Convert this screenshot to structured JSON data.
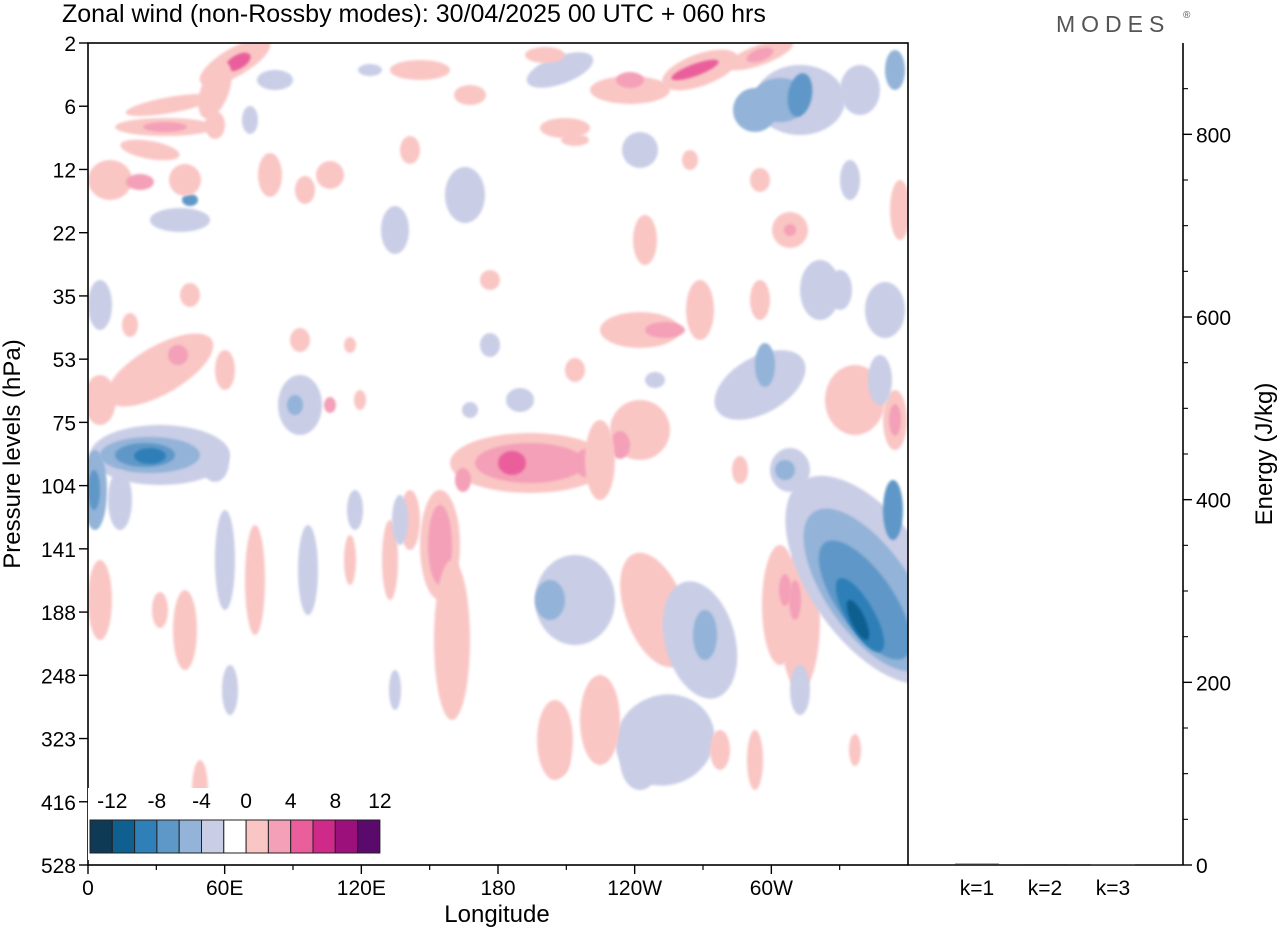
{
  "title": "Zonal wind (non-Rossby modes):  30/04/2025  00 UTC  + 060 hrs",
  "brand": "MODES",
  "brand_mark": "®",
  "chart_data": [
    {
      "type": "heatmap",
      "xlabel": "Longitude",
      "ylabel": "Pressure levels (hPa)",
      "x_ticks": [
        "0",
        "60E",
        "120E",
        "180",
        "120W",
        "60W"
      ],
      "y_ticks": [
        "2",
        "6",
        "12",
        "22",
        "35",
        "53",
        "75",
        "104",
        "141",
        "188",
        "248",
        "323",
        "416",
        "528"
      ],
      "colorbar": {
        "labels": [
          "-12",
          "-8",
          "-4",
          "0",
          "4",
          "8",
          "12"
        ],
        "levels": [
          -14,
          -12,
          -10,
          -8,
          -6,
          -4,
          -2,
          2,
          4,
          6,
          8,
          10,
          12,
          14
        ],
        "colors": [
          "#0e3a55",
          "#0f5f90",
          "#2f7fb8",
          "#5e98c8",
          "#93b3d8",
          "#c9cde6",
          "#ffffff",
          "#f9c6c4",
          "#f4a0b8",
          "#ea5f9b",
          "#cf2a8a",
          "#9b107a",
          "#5a0a6a"
        ]
      },
      "features": [
        {
          "lon": 25,
          "lev": 5.7,
          "value": -12
        },
        {
          "lon": 27,
          "lev": 5.9,
          "value": -8
        },
        {
          "lon": 2,
          "lev": 7.0,
          "value": -6
        },
        {
          "lon": 185,
          "lev": 5.8,
          "value": 8
        },
        {
          "lon": 210,
          "lev": 5.8,
          "value": 5
        },
        {
          "lon": 150,
          "lev": 8.2,
          "value": 5
        },
        {
          "lon": 337,
          "lev": 9.5,
          "value": -12
        },
        {
          "lon": 350,
          "lev": 8.0,
          "value": -8
        },
        {
          "lon": 270,
          "lev": 9.3,
          "value": -6
        },
        {
          "lon": 305,
          "lev": 0.9,
          "value": -6
        },
        {
          "lon": 265,
          "lev": 0.3,
          "value": 8
        },
        {
          "lon": 65,
          "lev": 0.3,
          "value": 7
        },
        {
          "lon": 40,
          "lev": 1.1,
          "value": 5
        },
        {
          "lon": 40,
          "lev": 4.9,
          "value": 5
        }
      ]
    },
    {
      "type": "bar",
      "categories": [
        "k=1",
        "k=2",
        "k=3"
      ],
      "values": [
        1.5,
        1.0,
        0.5
      ],
      "ylabel": "Energy (J/kg)",
      "ylim": [
        0,
        900
      ],
      "y_ticks": [
        0,
        200,
        400,
        600,
        800
      ]
    }
  ]
}
